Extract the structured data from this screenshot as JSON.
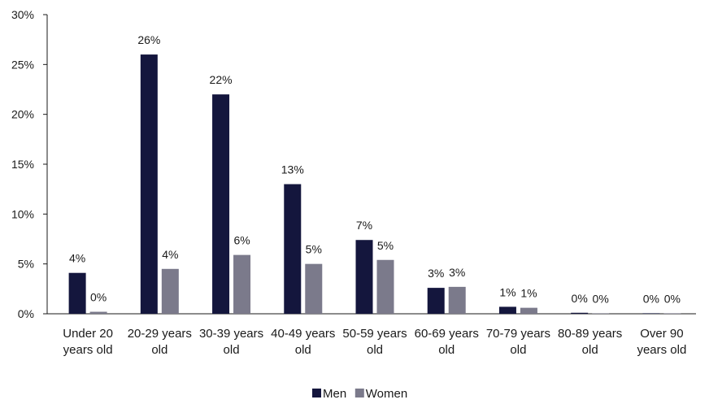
{
  "chart_data": {
    "type": "bar",
    "title": "",
    "xlabel": "",
    "ylabel": "",
    "ylim": [
      0,
      30
    ],
    "yticks": [
      "0%",
      "5%",
      "10%",
      "15%",
      "20%",
      "25%",
      "30%"
    ],
    "yticks_values": [
      0,
      5,
      10,
      15,
      20,
      25,
      30
    ],
    "grid": false,
    "legend": "bottom",
    "categories": [
      [
        "Under 20",
        "years old"
      ],
      [
        "20-29 years",
        "old"
      ],
      [
        "30-39 years",
        "old"
      ],
      [
        "40-49 years",
        "old"
      ],
      [
        "50-59 years",
        "old"
      ],
      [
        "60-69 years",
        "old"
      ],
      [
        "70-79 years",
        "old"
      ],
      [
        "80-89 years",
        "old"
      ],
      [
        "Over 90",
        "years old"
      ]
    ],
    "series": [
      {
        "name": "Men",
        "color": "#14163d",
        "values": [
          4.1,
          26.0,
          22.0,
          13.0,
          7.4,
          2.6,
          0.7,
          0.1,
          0.05
        ],
        "labels": [
          "4%",
          "26%",
          "22%",
          "13%",
          "7%",
          "3%",
          "1%",
          "0%",
          "0%"
        ]
      },
      {
        "name": "Women",
        "color": "#7b7a8b",
        "values": [
          0.2,
          4.5,
          5.9,
          5.0,
          5.4,
          2.7,
          0.6,
          0.05,
          0.02
        ],
        "labels": [
          "0%",
          "4%",
          "6%",
          "5%",
          "5%",
          "3%",
          "1%",
          "0%",
          "0%"
        ]
      }
    ]
  }
}
